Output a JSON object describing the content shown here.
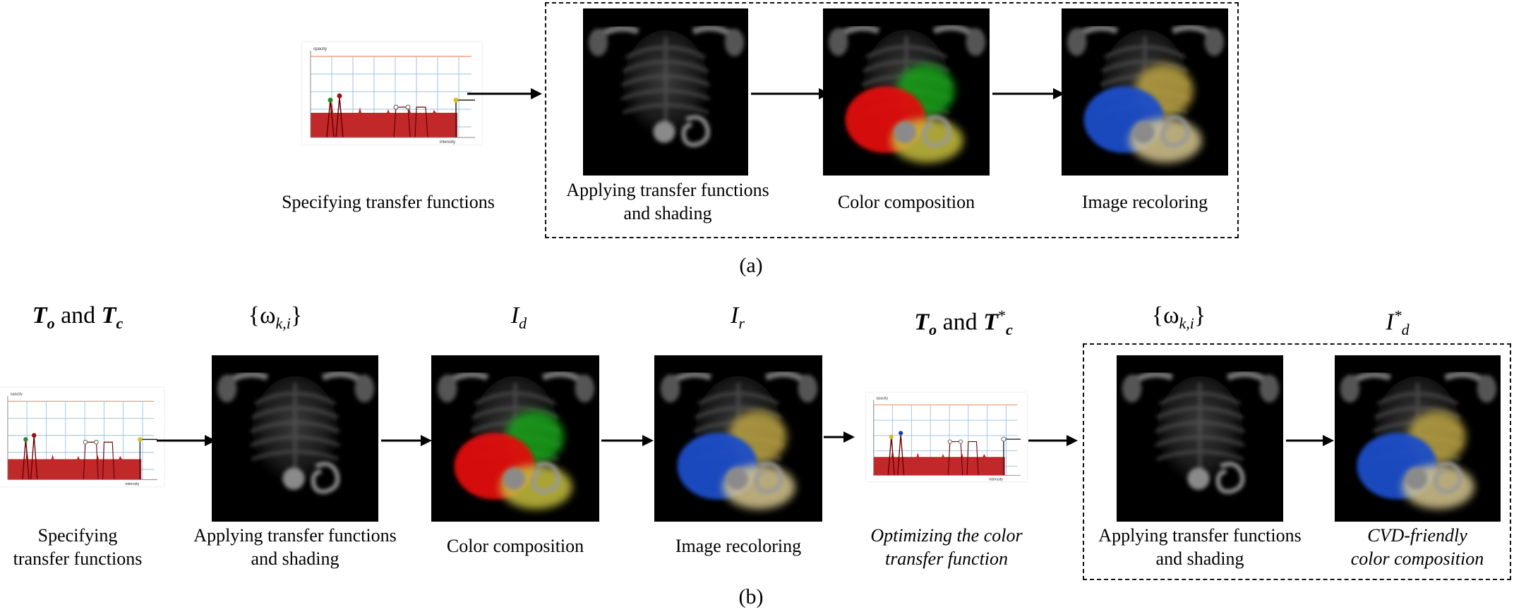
{
  "part_a": {
    "caption": "(a)",
    "steps": [
      {
        "id": "tf",
        "label": [
          "Specifying transfer functions"
        ]
      },
      {
        "id": "shade",
        "label": [
          "Applying transfer functions",
          "and shading"
        ]
      },
      {
        "id": "compose",
        "label": [
          "Color composition"
        ]
      },
      {
        "id": "recolor",
        "label": [
          "Image recoloring"
        ]
      }
    ],
    "tf_chart": {
      "y_label": "opacity",
      "x_label": "intensity"
    }
  },
  "part_b": {
    "caption": "(b)",
    "math": {
      "m1": {
        "a": "T",
        "a_sub": "o",
        "and": "and",
        "b": "T",
        "b_sub": "c"
      },
      "m2": {
        "text": "{ω",
        "sub": "k,i",
        "close": "}"
      },
      "m3": {
        "base": "I",
        "sub": "d"
      },
      "m4": {
        "base": "I",
        "sub": "r"
      },
      "m5": {
        "a": "T",
        "a_sub": "o",
        "and": "and",
        "b": "T",
        "b_sup": "*",
        "b_sub": "c"
      },
      "m6": {
        "text": "{ω",
        "sub": "k,i",
        "close": "}"
      },
      "m7": {
        "base": "I",
        "sup": "*",
        "sub": "d"
      }
    },
    "steps": [
      {
        "id": "tf",
        "label": [
          "Specifying",
          "transfer functions"
        ],
        "italic": false
      },
      {
        "id": "shade",
        "label": [
          "Applying transfer functions",
          "and shading"
        ],
        "italic": false
      },
      {
        "id": "compose",
        "label": [
          "Color composition"
        ],
        "italic": false
      },
      {
        "id": "recolor",
        "label": [
          "Image recoloring"
        ],
        "italic": false
      },
      {
        "id": "optimize",
        "label": [
          "Optimizing the color",
          "transfer function"
        ],
        "italic": true
      },
      {
        "id": "shade2",
        "label": [
          "Applying transfer functions",
          "and shading"
        ],
        "italic": false
      },
      {
        "id": "cvd",
        "label": [
          "CVD-friendly",
          "color composition"
        ],
        "italic": true
      }
    ],
    "tf_chart": {
      "y_label": "opacity",
      "x_label": "intensity"
    }
  },
  "colors": {
    "red_region": "#e01010",
    "green_region": "#18a018",
    "yellow_region": "#c8c040",
    "blue_region": "#1f4ec8",
    "gold_region": "#b8a040",
    "tf_fill": "#c0282a",
    "grid_blue": "#9cc0dc",
    "grid_orange": "#f0a080"
  }
}
